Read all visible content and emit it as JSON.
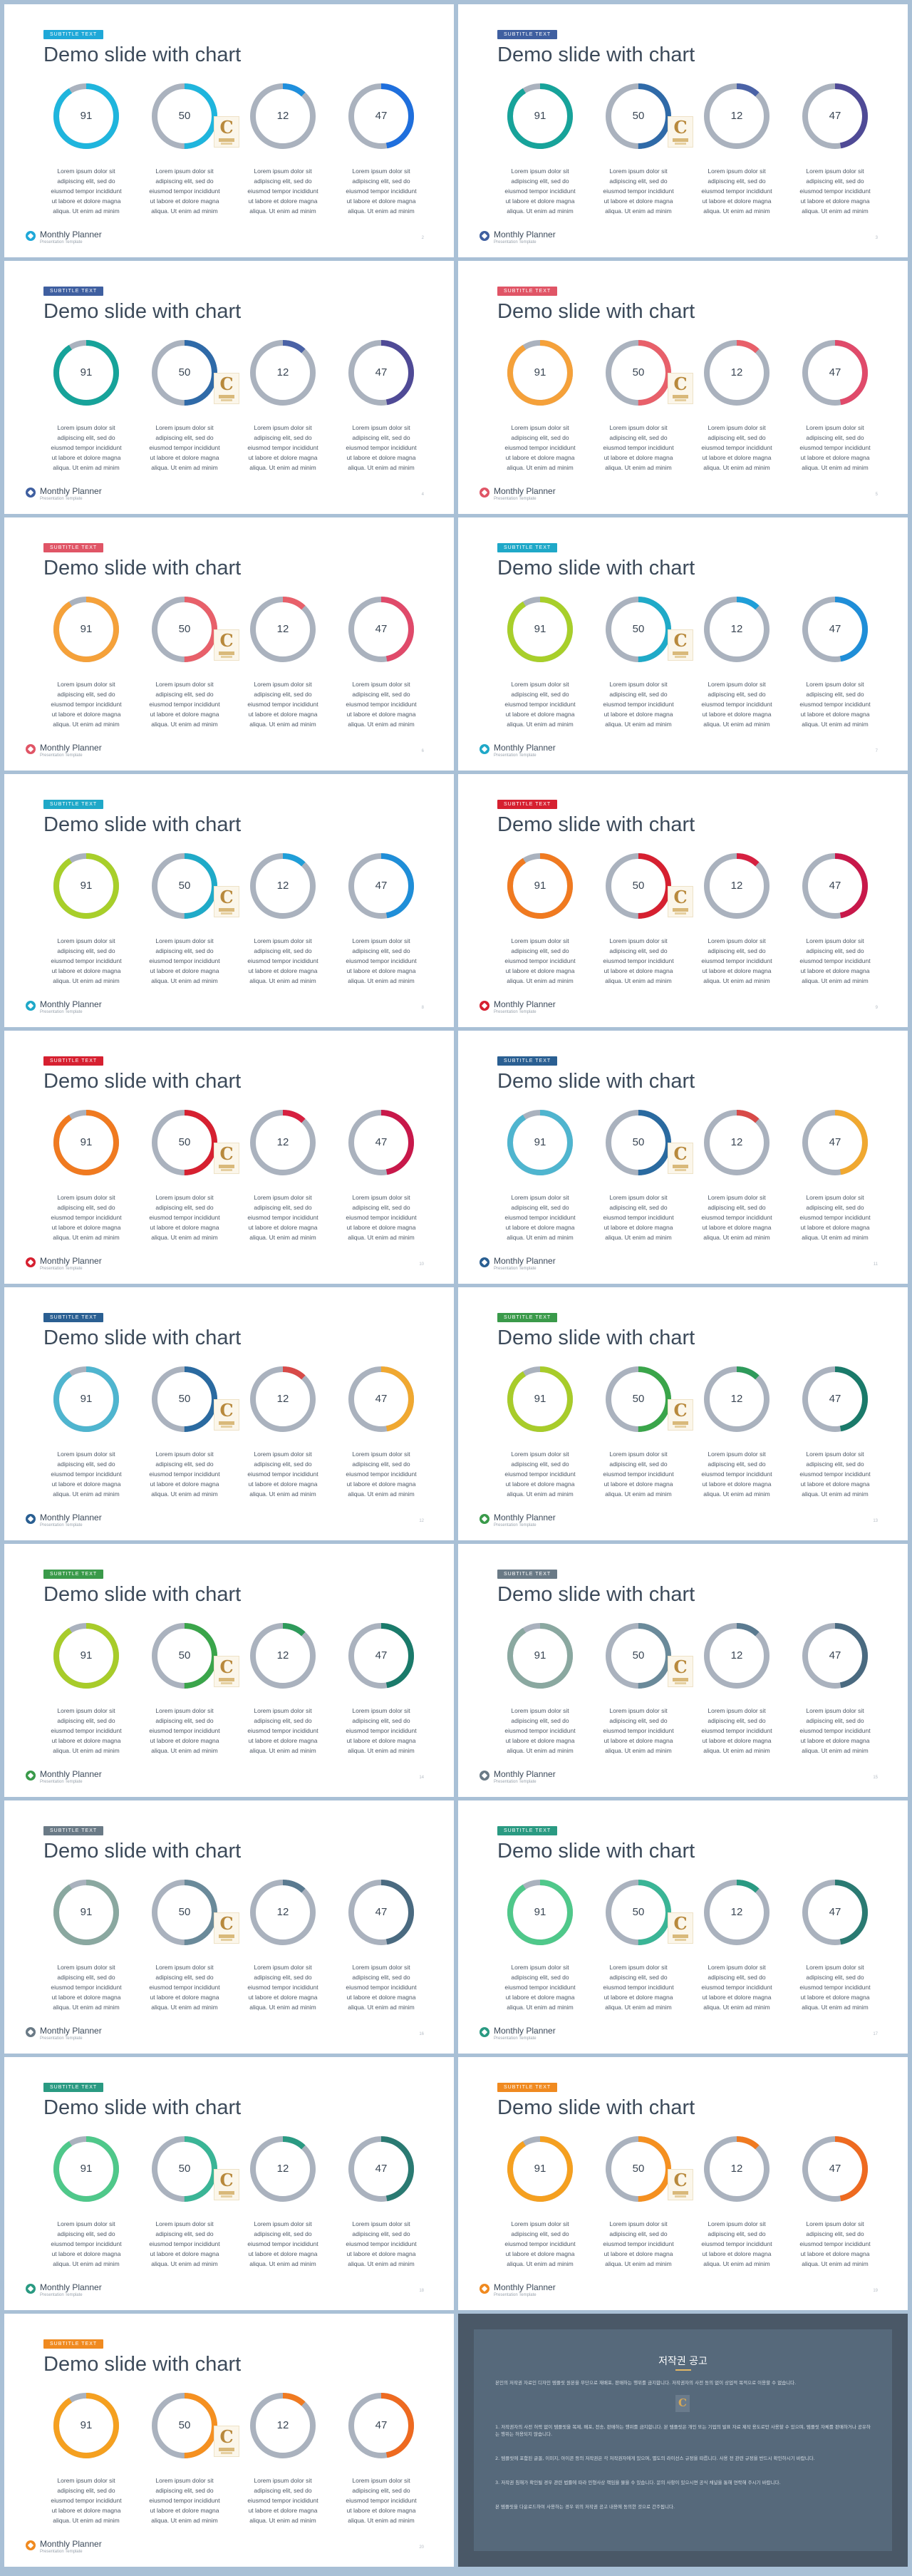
{
  "deck": {
    "title": "Demo slide with chart",
    "badge": "SUBTITLE TEXT",
    "brand": "Monthly Planner",
    "brand_sub": "Presentation Template",
    "description": [
      "Lorem ipsum dolor sit",
      "adipiscing elit, sed do",
      "eiusmod tempor incididunt",
      "ut labore et dolore magna",
      "aliqua. Ut enim ad minim"
    ]
  },
  "slides": [
    {
      "page": "2",
      "badge_color": "#1fa8d8",
      "icon_color": "#1fa8d8",
      "charts": [
        {
          "value": 91,
          "color": "#1fb5dd"
        },
        {
          "value": 50,
          "color": "#1fb5dd"
        },
        {
          "value": 12,
          "color": "#1f8fdd"
        },
        {
          "value": 47,
          "color": "#1f6fdd"
        }
      ]
    },
    {
      "page": "3",
      "badge_color": "#3f5fa0",
      "icon_color": "#3f5fa0",
      "charts": [
        {
          "value": 91,
          "color": "#17a39a"
        },
        {
          "value": 50,
          "color": "#2f6aa8"
        },
        {
          "value": 12,
          "color": "#4a62a6"
        },
        {
          "value": 47,
          "color": "#4f4a96"
        }
      ]
    },
    {
      "page": "4",
      "badge_color": "#3f5fa0",
      "icon_color": "#3f5fa0",
      "charts": [
        {
          "value": 91,
          "color": "#17a39a"
        },
        {
          "value": 50,
          "color": "#2f6aa8"
        },
        {
          "value": 12,
          "color": "#4a62a6"
        },
        {
          "value": 47,
          "color": "#4f4a96"
        }
      ]
    },
    {
      "page": "5",
      "badge_color": "#e05566",
      "icon_color": "#e05566",
      "charts": [
        {
          "value": 91,
          "color": "#f5a13a"
        },
        {
          "value": 50,
          "color": "#e8606a"
        },
        {
          "value": 12,
          "color": "#e8606a"
        },
        {
          "value": 47,
          "color": "#e04a6a"
        }
      ]
    },
    {
      "page": "6",
      "badge_color": "#e05566",
      "icon_color": "#e05566",
      "charts": [
        {
          "value": 91,
          "color": "#f5a13a"
        },
        {
          "value": 50,
          "color": "#e8606a"
        },
        {
          "value": 12,
          "color": "#e8606a"
        },
        {
          "value": 47,
          "color": "#e04a6a"
        }
      ]
    },
    {
      "page": "7",
      "badge_color": "#1fa8c8",
      "icon_color": "#1fa8c8",
      "charts": [
        {
          "value": 91,
          "color": "#a8cf2a"
        },
        {
          "value": 50,
          "color": "#1faac8"
        },
        {
          "value": 12,
          "color": "#1f9ed8"
        },
        {
          "value": 47,
          "color": "#1f8ed8"
        }
      ]
    },
    {
      "page": "8",
      "badge_color": "#1fa8c8",
      "icon_color": "#1fa8c8",
      "charts": [
        {
          "value": 91,
          "color": "#a8cf2a"
        },
        {
          "value": 50,
          "color": "#1faac8"
        },
        {
          "value": 12,
          "color": "#1f9ed8"
        },
        {
          "value": 47,
          "color": "#1f8ed8"
        }
      ]
    },
    {
      "page": "9",
      "badge_color": "#d62030",
      "icon_color": "#d62030",
      "charts": [
        {
          "value": 91,
          "color": "#f07a20"
        },
        {
          "value": 50,
          "color": "#d62030"
        },
        {
          "value": 12,
          "color": "#d62040"
        },
        {
          "value": 47,
          "color": "#c8184a"
        }
      ]
    },
    {
      "page": "10",
      "badge_color": "#d62030",
      "icon_color": "#d62030",
      "charts": [
        {
          "value": 91,
          "color": "#f07a20"
        },
        {
          "value": 50,
          "color": "#d62030"
        },
        {
          "value": 12,
          "color": "#d62040"
        },
        {
          "value": 47,
          "color": "#c8184a"
        }
      ]
    },
    {
      "page": "11",
      "badge_color": "#2a5f92",
      "icon_color": "#2a5f92",
      "charts": [
        {
          "value": 91,
          "color": "#4fb5cf"
        },
        {
          "value": 50,
          "color": "#2a6aa0"
        },
        {
          "value": 12,
          "color": "#d84a48"
        },
        {
          "value": 47,
          "color": "#f0a830"
        }
      ]
    },
    {
      "page": "12",
      "badge_color": "#2a5f92",
      "icon_color": "#2a5f92",
      "charts": [
        {
          "value": 91,
          "color": "#4fb5cf"
        },
        {
          "value": 50,
          "color": "#2a6aa0"
        },
        {
          "value": 12,
          "color": "#d84a48"
        },
        {
          "value": 47,
          "color": "#f0a830"
        }
      ]
    },
    {
      "page": "13",
      "badge_color": "#3a9a4a",
      "icon_color": "#3a9a4a",
      "charts": [
        {
          "value": 91,
          "color": "#a8cc2a"
        },
        {
          "value": 50,
          "color": "#3aa54a"
        },
        {
          "value": 12,
          "color": "#2e9a5a"
        },
        {
          "value": 47,
          "color": "#1a7a6a"
        }
      ]
    },
    {
      "page": "14",
      "badge_color": "#3a9a4a",
      "icon_color": "#3a9a4a",
      "charts": [
        {
          "value": 91,
          "color": "#a8cc2a"
        },
        {
          "value": 50,
          "color": "#3aa54a"
        },
        {
          "value": 12,
          "color": "#2e9a5a"
        },
        {
          "value": 47,
          "color": "#1a7a6a"
        }
      ]
    },
    {
      "page": "15",
      "badge_color": "#6a7a86",
      "icon_color": "#6a7a86",
      "charts": [
        {
          "value": 91,
          "color": "#8aa8a0"
        },
        {
          "value": 50,
          "color": "#6a8a9a"
        },
        {
          "value": 12,
          "color": "#5a7a90"
        },
        {
          "value": 47,
          "color": "#4a6a80"
        }
      ]
    },
    {
      "page": "16",
      "badge_color": "#6a7a86",
      "icon_color": "#6a7a86",
      "charts": [
        {
          "value": 91,
          "color": "#8aa8a0"
        },
        {
          "value": 50,
          "color": "#6a8a9a"
        },
        {
          "value": 12,
          "color": "#5a7a90"
        },
        {
          "value": 47,
          "color": "#4a6a80"
        }
      ]
    },
    {
      "page": "17",
      "badge_color": "#2a9a82",
      "icon_color": "#2a9a82",
      "charts": [
        {
          "value": 91,
          "color": "#4fc88a"
        },
        {
          "value": 50,
          "color": "#3ab596"
        },
        {
          "value": 12,
          "color": "#2a9a82"
        },
        {
          "value": 47,
          "color": "#2a7a72"
        }
      ]
    },
    {
      "page": "18",
      "badge_color": "#2a9a82",
      "icon_color": "#2a9a82",
      "charts": [
        {
          "value": 91,
          "color": "#4fc88a"
        },
        {
          "value": 50,
          "color": "#3ab596"
        },
        {
          "value": 12,
          "color": "#2a9a82"
        },
        {
          "value": 47,
          "color": "#2a7a72"
        }
      ]
    },
    {
      "page": "19",
      "badge_color": "#f08a20",
      "icon_color": "#f08a20",
      "charts": [
        {
          "value": 91,
          "color": "#f5a020"
        },
        {
          "value": 50,
          "color": "#f59020"
        },
        {
          "value": 12,
          "color": "#f07a20"
        },
        {
          "value": 47,
          "color": "#ee6a20"
        }
      ]
    },
    {
      "page": "20",
      "badge_color": "#f08a20",
      "icon_color": "#f08a20",
      "charts": [
        {
          "value": 91,
          "color": "#f5a020"
        },
        {
          "value": 50,
          "color": "#f59020"
        },
        {
          "value": 12,
          "color": "#f07a20"
        },
        {
          "value": 47,
          "color": "#ee6a20"
        }
      ]
    }
  ],
  "colors": {
    "track": "#aab2be",
    "text": "#3c4a5a",
    "background": "#a9c0d6"
  },
  "notice": {
    "title": "저작권 공고",
    "paragraphs": [
      "본인의 저작권 자료인 디자인 템플릿 원본을 무단으로 재배포, 판매하는 행위를 금지합니다. 저작권자의 사전 동의 없이 상업적 목적으로 이용할 수 없습니다.",
      "1. 저작권자의 사전 허락 없이 템플릿을 복제, 배포, 전송, 판매하는 행위를 금지합니다. 본 템플릿은 개인 또는 기업의 발표 자료 제작 용도로만 사용할 수 있으며, 템플릿 자체를 판매하거나 공유하는 행위는 허용되지 않습니다.",
      "2. 템플릿에 포함된 글꼴, 이미지, 아이콘 등의 저작권은 각 저작권자에게 있으며, 별도의 라이선스 규정을 따릅니다. 사용 전 관련 규정을 반드시 확인하시기 바랍니다.",
      "3. 저작권 침해가 확인될 경우 관련 법률에 따라 민형사상 책임을 물을 수 있습니다. 문의 사항이 있으시면 공식 채널을 통해 연락해 주시기 바랍니다.",
      "본 템플릿을 다운로드하여 사용하는 경우 위의 저작권 공고 내용에 동의한 것으로 간주됩니다."
    ]
  }
}
